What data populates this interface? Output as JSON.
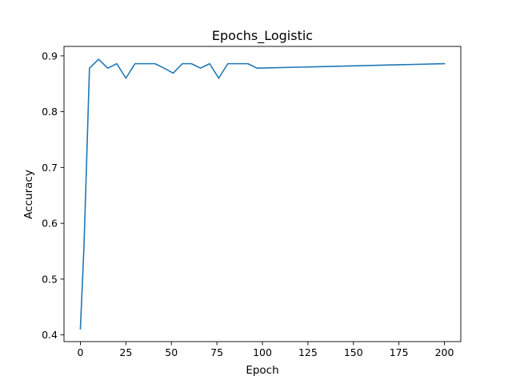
{
  "chart_data": {
    "type": "line",
    "title": "Epochs_Logistic",
    "xlabel": "Epoch",
    "ylabel": "Accuracy",
    "xlim": [
      -9,
      209
    ],
    "ylim": [
      0.388,
      0.917
    ],
    "xticks": [
      0,
      25,
      50,
      75,
      100,
      125,
      150,
      175,
      200
    ],
    "yticks": [
      0.4,
      0.5,
      0.6,
      0.7,
      0.8,
      0.9
    ],
    "ytick_labels": [
      "0.4",
      "0.5",
      "0.6",
      "0.7",
      "0.8",
      "0.9"
    ],
    "grid": false,
    "line_color": "#1f77b4",
    "series": [
      {
        "x": [
          0,
          2,
          5,
          10,
          15,
          20,
          25,
          30,
          35,
          41,
          46,
          51,
          56,
          61,
          66,
          71,
          76,
          81,
          86,
          92,
          97,
          200
        ],
        "y": [
          0.411,
          0.56,
          0.878,
          0.894,
          0.878,
          0.886,
          0.86,
          0.886,
          0.886,
          0.886,
          0.878,
          0.869,
          0.886,
          0.886,
          0.878,
          0.886,
          0.86,
          0.886,
          0.886,
          0.886,
          0.878,
          0.886
        ]
      }
    ]
  }
}
